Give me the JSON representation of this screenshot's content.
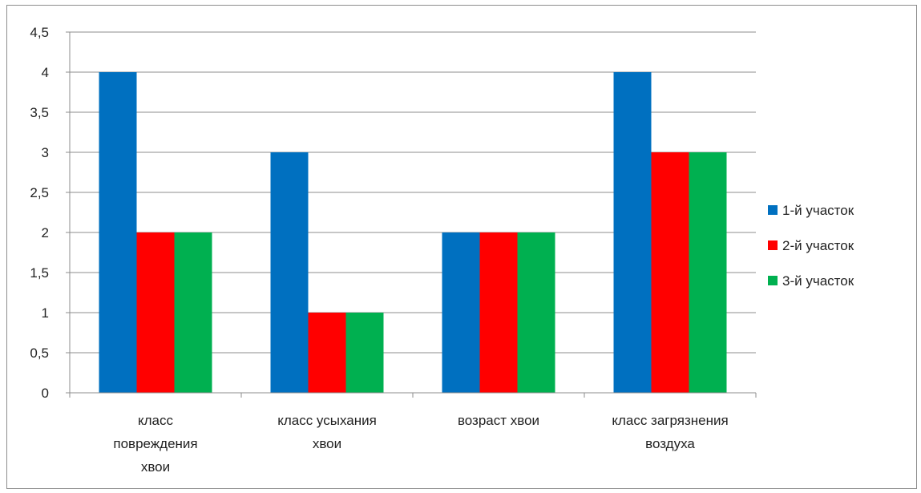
{
  "chart_data": {
    "type": "bar",
    "title": "",
    "xlabel": "",
    "ylabel": "",
    "categories": [
      [
        "класс",
        "повреждения",
        "хвои"
      ],
      [
        "класс усыхания",
        "хвои"
      ],
      [
        "возраст хвои"
      ],
      [
        "класс загрязнения",
        "воздуха"
      ]
    ],
    "series": [
      {
        "name": "1-й участок",
        "color": "#0070C0",
        "values": [
          4,
          3,
          2,
          4
        ]
      },
      {
        "name": "2-й участок",
        "color": "#FF0000",
        "values": [
          2,
          1,
          2,
          3
        ]
      },
      {
        "name": "3-й участок",
        "color": "#00B050",
        "values": [
          2,
          1,
          2,
          3
        ]
      }
    ],
    "ylim": [
      0,
      4.5
    ],
    "yticks": [
      "0",
      "0,5",
      "1",
      "1,5",
      "2",
      "2,5",
      "3",
      "3,5",
      "4",
      "4,5"
    ],
    "grid": true,
    "legend_position": "right"
  }
}
